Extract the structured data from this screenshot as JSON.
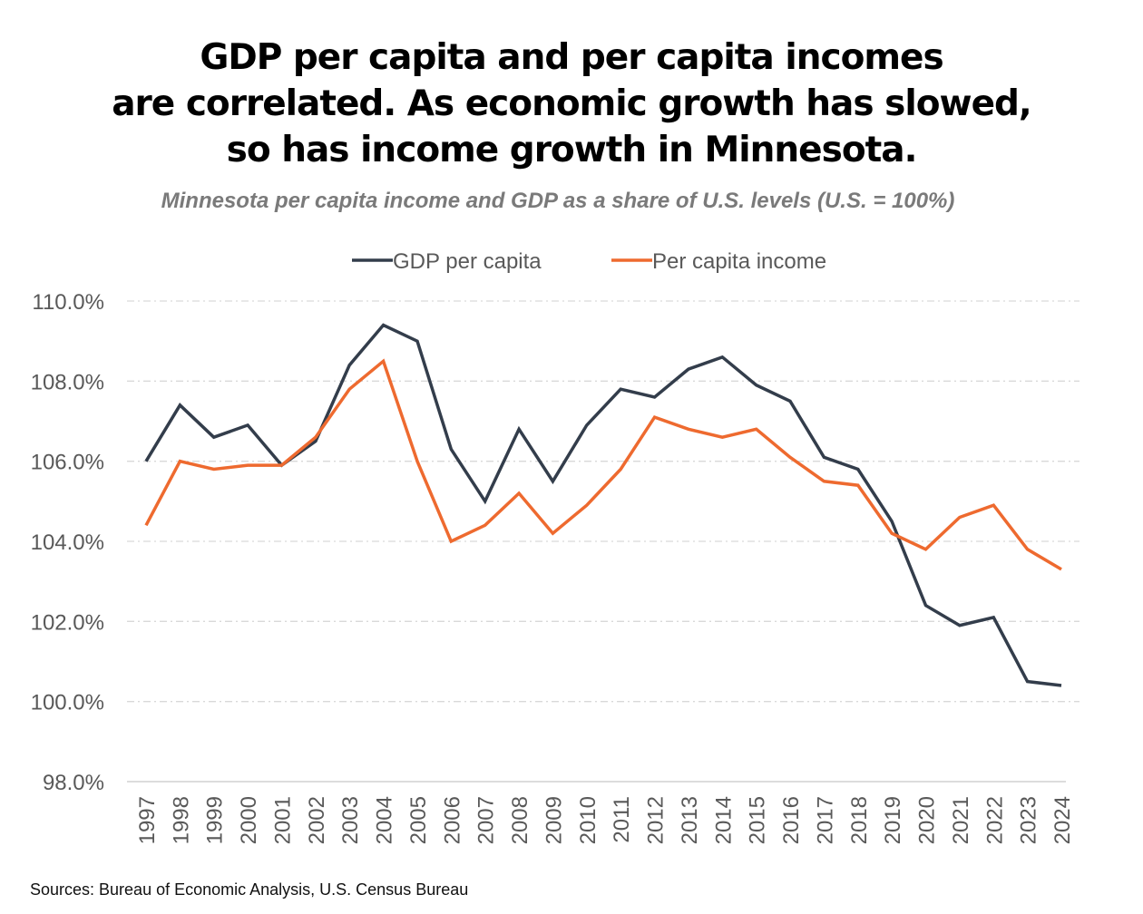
{
  "title_lines": [
    "GDP per capita and per capita incomes",
    "are correlated. As economic growth has slowed,",
    "so has income growth in Minnesota."
  ],
  "sources": "Sources: Bureau of Economic Analysis, U.S. Census Bureau",
  "chart_data": {
    "type": "line",
    "title": "GDP per capita and per capita incomes are correlated. As economic growth has slowed, so has income growth in Minnesota.",
    "subtitle": "Minnesota per capita income and GDP as a share of U.S. levels (U.S. = 100%)",
    "xlabel": "",
    "ylabel": "",
    "ylim": [
      98,
      110
    ],
    "yticks": [
      98,
      100,
      102,
      104,
      106,
      108,
      110
    ],
    "ytick_labels": [
      "98.0%",
      "100.0%",
      "102.0%",
      "104.0%",
      "106.0%",
      "108.0%",
      "110.0%"
    ],
    "grid": true,
    "legend_position": "top",
    "x": [
      "1997",
      "1998",
      "1999",
      "2000",
      "2001",
      "2002",
      "2003",
      "2004",
      "2005",
      "2006",
      "2007",
      "2008",
      "2009",
      "2010",
      "2011",
      "2012",
      "2013",
      "2014",
      "2015",
      "2016",
      "2017",
      "2018",
      "2019",
      "2020",
      "2021",
      "2022",
      "2023",
      "2024"
    ],
    "series": [
      {
        "name": "GDP per capita",
        "color": "#333d4b",
        "values": [
          106.0,
          107.4,
          106.6,
          106.9,
          105.9,
          106.5,
          108.4,
          109.4,
          109.0,
          106.3,
          105.0,
          106.8,
          105.5,
          106.9,
          107.8,
          107.6,
          108.3,
          108.6,
          107.9,
          107.5,
          106.1,
          105.8,
          104.5,
          102.4,
          101.9,
          102.1,
          100.5,
          100.4
        ]
      },
      {
        "name": "Per capita income",
        "color": "#ee6a2f",
        "values": [
          104.4,
          106.0,
          105.8,
          105.9,
          105.9,
          106.6,
          107.8,
          108.5,
          106.0,
          104.0,
          104.4,
          105.2,
          104.2,
          104.9,
          105.8,
          107.1,
          106.8,
          106.6,
          106.8,
          106.1,
          105.5,
          105.4,
          104.2,
          103.8,
          104.6,
          104.9,
          103.8,
          103.3
        ]
      }
    ]
  }
}
